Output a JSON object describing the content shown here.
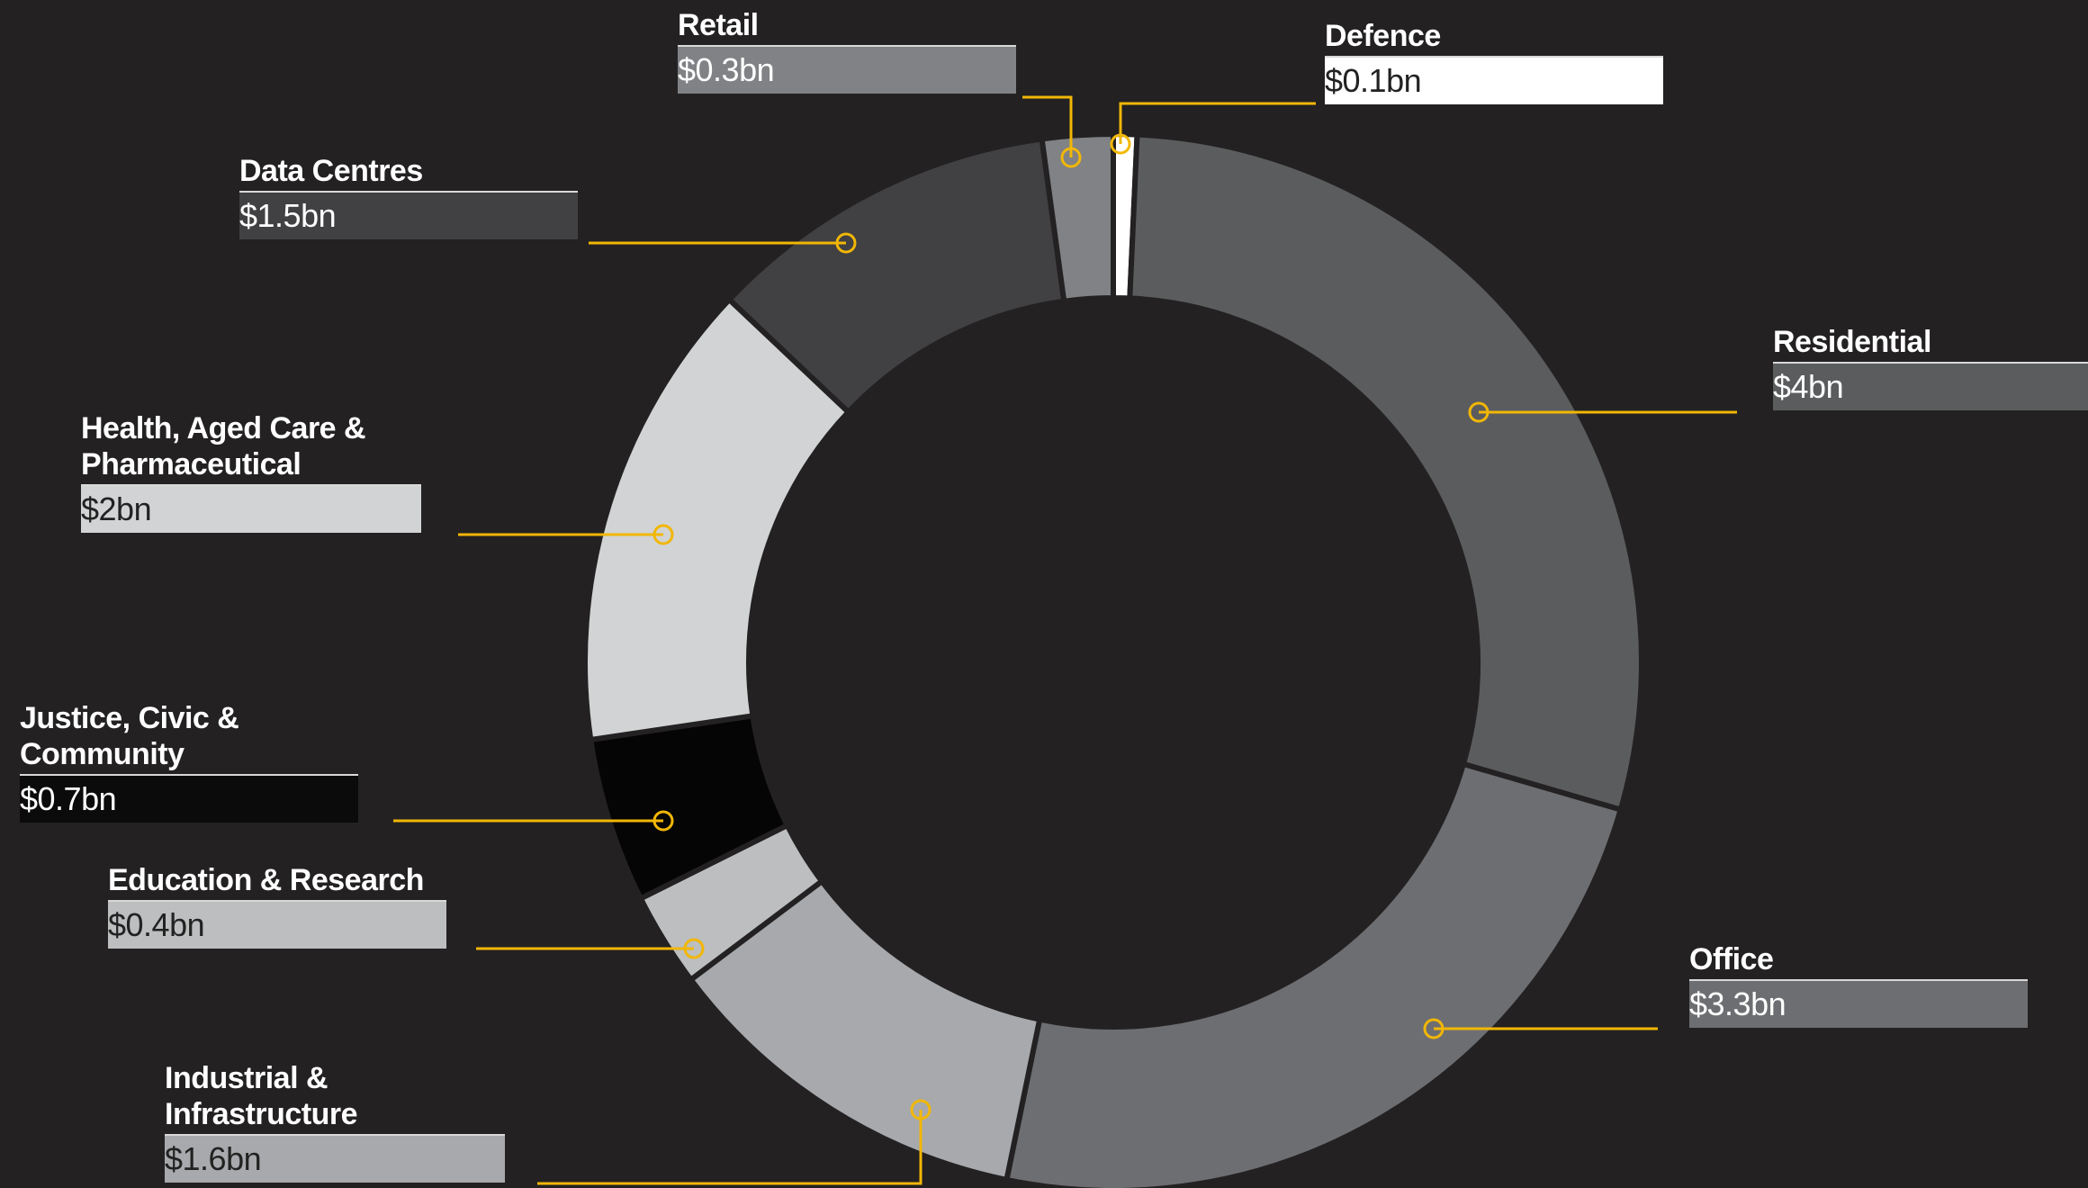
{
  "chart_data": {
    "type": "pie",
    "variant": "donut",
    "title": "",
    "unit": "bn",
    "slices": [
      {
        "label": "Defence",
        "value_label": "$0.1bn",
        "value": 0.1,
        "color": "#ffffff",
        "text_color": "#222222"
      },
      {
        "label": "Residential",
        "value_label": "$4bn",
        "value": 4.0,
        "color": "#5b5c5e",
        "text_color": "#ffffff"
      },
      {
        "label": "Office",
        "value_label": "$3.3bn",
        "value": 3.3,
        "color": "#6d6e71",
        "text_color": "#ffffff"
      },
      {
        "label": "Industrial & Infrastructure",
        "value_label": "$1.6bn",
        "value": 1.6,
        "color": "#a7a9ac",
        "text_color": "#222222"
      },
      {
        "label": "Education & Research",
        "value_label": "$0.4bn",
        "value": 0.4,
        "color": "#bcbec0",
        "text_color": "#222222"
      },
      {
        "label": "Justice, Civic & Community",
        "value_label": "$0.7bn",
        "value": 0.7,
        "color": "#050505",
        "text_color": "#ffffff"
      },
      {
        "label": "Health, Aged Care & Pharmaceutical",
        "value_label": "$2bn",
        "value": 2.0,
        "color": "#d1d3d4",
        "text_color": "#222222"
      },
      {
        "label": "Data Centres",
        "value_label": "$1.5bn",
        "value": 1.5,
        "color": "#414042",
        "text_color": "#ffffff"
      },
      {
        "label": "Retail",
        "value_label": "$0.3bn",
        "value": 0.3,
        "color": "#808285",
        "text_color": "#ffffff"
      }
    ],
    "legend_position": "callouts",
    "leader_line_color": "#f2b705",
    "background": "#232122"
  },
  "labels": {
    "defence": {
      "name": "Defence",
      "value": "$0.1bn"
    },
    "residential": {
      "name": "Residential",
      "value": "$4bn"
    },
    "office": {
      "name": "Office",
      "value": "$3.3bn"
    },
    "industrial": {
      "name_line1": "Industrial &",
      "name_line2": "Infrastructure",
      "value": "$1.6bn"
    },
    "education": {
      "name": "Education & Research",
      "value": "$0.4bn"
    },
    "justice": {
      "name_line1": "Justice, Civic &",
      "name_line2": "Community",
      "value": "$0.7bn"
    },
    "health": {
      "name_line1": "Health, Aged Care &",
      "name_line2": "Pharmaceutical",
      "value": "$2bn"
    },
    "datacentres": {
      "name": "Data Centres",
      "value": "$1.5bn"
    },
    "retail": {
      "name": "Retail",
      "value": "$0.3bn"
    }
  }
}
